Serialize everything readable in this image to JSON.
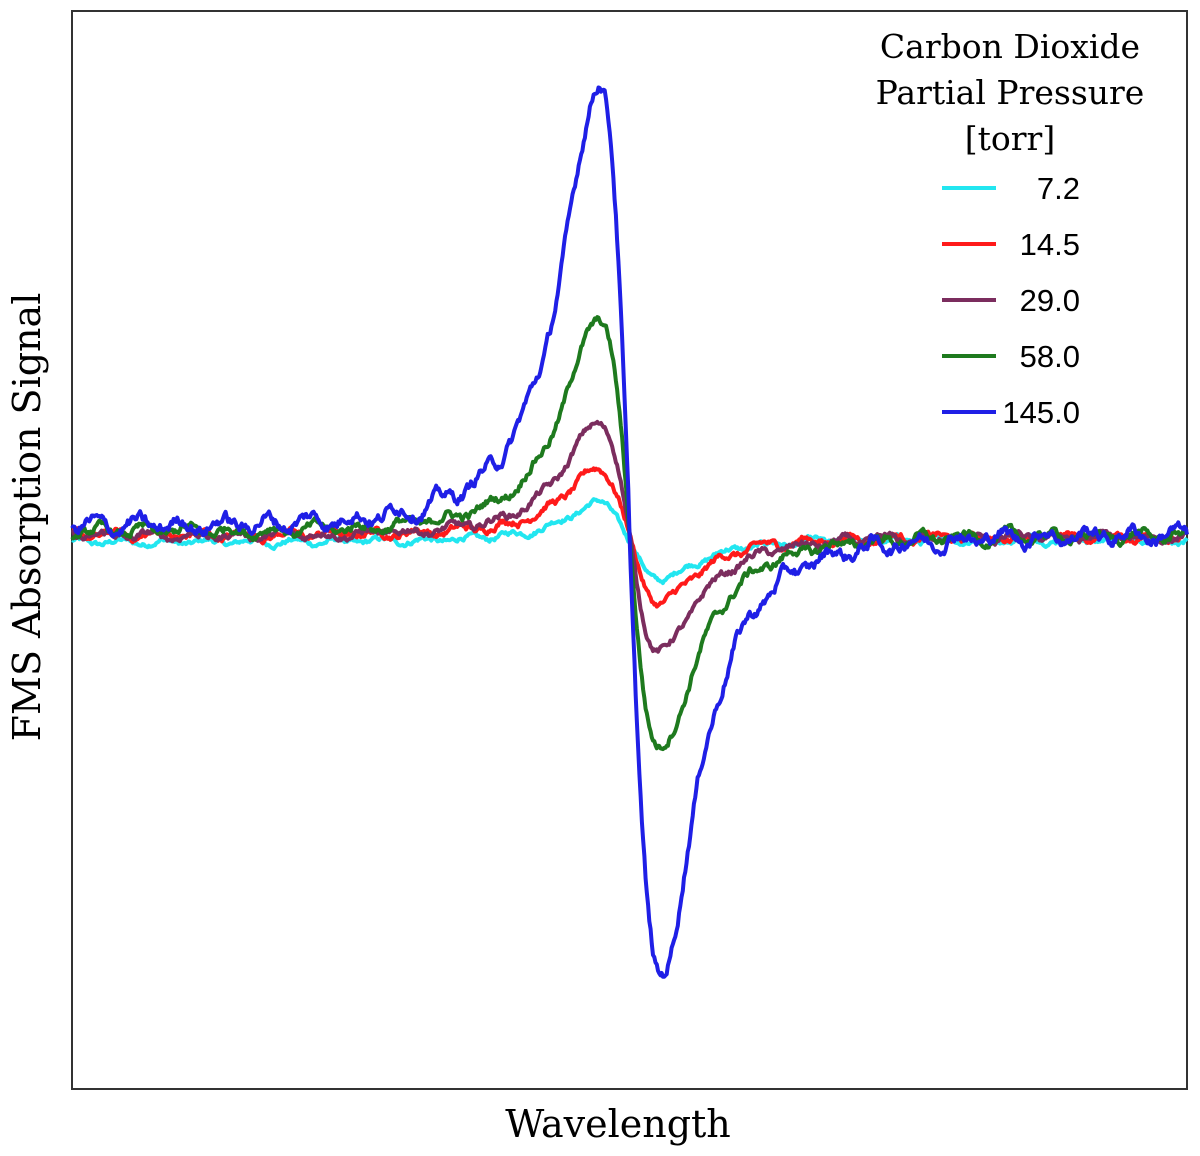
{
  "chart_data": {
    "type": "line",
    "title": "",
    "xlabel": "Wavelength",
    "ylabel": "FMS Absorption Signal",
    "xlim": [
      -9,
      9
    ],
    "ylim": [
      -5.45,
      5.2
    ],
    "grid": false,
    "legend": {
      "position": "top-right",
      "title_lines": [
        "Carbon Dioxide",
        "Partial Pressure",
        "[torr]"
      ]
    },
    "line_center": 0,
    "line_width": 0.5,
    "series": [
      {
        "name": "7.2",
        "color": "#22e6f0",
        "amplitude": 0.45,
        "baseline_offset": -0.05,
        "noise": 0.03
      },
      {
        "name": "14.5",
        "color": "#ff1a1a",
        "amplitude": 0.75,
        "baseline_offset": 0.02,
        "noise": 0.04
      },
      {
        "name": "29.0",
        "color": "#7b2d5e",
        "amplitude": 1.3,
        "baseline_offset": 0.01,
        "noise": 0.04
      },
      {
        "name": "58.0",
        "color": "#1e7a1e",
        "amplitude": 2.45,
        "baseline_offset": 0.05,
        "noise": 0.05
      },
      {
        "name": "145.0",
        "color": "#1f1fe6",
        "amplitude": 5.1,
        "baseline_offset": 0.1,
        "noise": 0.07
      }
    ]
  }
}
